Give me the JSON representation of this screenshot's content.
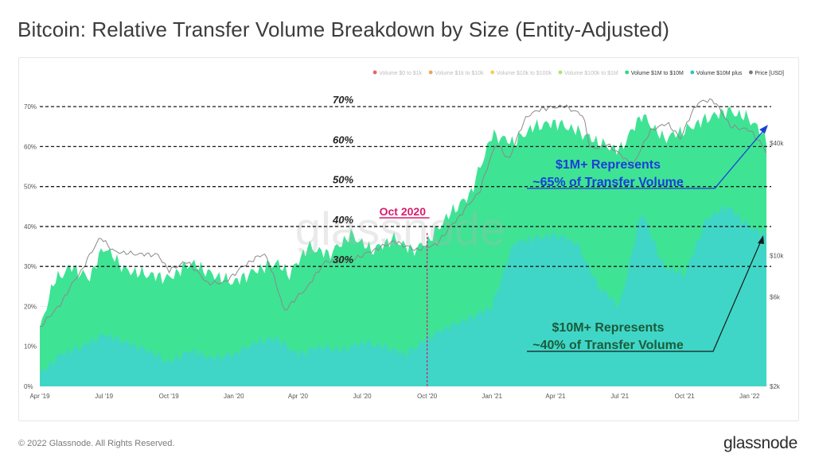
{
  "title": "Bitcoin: Relative Transfer Volume Breakdown by Size (Entity-Adjusted)",
  "footer": {
    "copyright": "© 2022 Glassnode. All Rights Reserved.",
    "brand": "glassnode"
  },
  "watermark": "glassnode",
  "chart_data": {
    "type": "area",
    "legend_position": "top-right",
    "legend": [
      {
        "name": "Volume $0 to $1k",
        "color": "#e5484d",
        "active": false
      },
      {
        "name": "Volume $1k to $10k",
        "color": "#f0913a",
        "active": false
      },
      {
        "name": "Volume $10k to $100k",
        "color": "#f2c531",
        "active": false
      },
      {
        "name": "Volume $100k to $1M",
        "color": "#9be05a",
        "active": false
      },
      {
        "name": "Volume $1M to $10M",
        "color": "#2fd681",
        "active": true
      },
      {
        "name": "Volume $10M plus",
        "color": "#2dc7c4",
        "active": true
      },
      {
        "name": "Price [USD]",
        "color": "#7a7a7a",
        "active": true
      }
    ],
    "y_left": {
      "min": 0,
      "max": 75,
      "ticks": [
        "0%",
        "10%",
        "20%",
        "30%",
        "40%",
        "50%",
        "60%",
        "70%"
      ],
      "tick_values": [
        0,
        10,
        20,
        30,
        40,
        50,
        60,
        70
      ]
    },
    "y_right": {
      "scale": "log",
      "min": 2000,
      "max": 80000,
      "ticks": [
        "$2k",
        "$6k",
        "$10k",
        "$40k"
      ],
      "tick_values": [
        2000,
        6000,
        10000,
        40000
      ]
    },
    "x_range": [
      "2019-04-01",
      "2022-01-25"
    ],
    "x_ticks": [
      {
        "label": "Apr '19",
        "date": "2019-04-01"
      },
      {
        "label": "Jul '19",
        "date": "2019-07-01"
      },
      {
        "label": "Oct '19",
        "date": "2019-10-01"
      },
      {
        "label": "Jan '20",
        "date": "2020-01-01"
      },
      {
        "label": "Apr '20",
        "date": "2020-04-01"
      },
      {
        "label": "Jul '20",
        "date": "2020-07-01"
      },
      {
        "label": "Oct '20",
        "date": "2020-10-01"
      },
      {
        "label": "Jan '21",
        "date": "2021-01-01"
      },
      {
        "label": "Apr '21",
        "date": "2021-04-01"
      },
      {
        "label": "Jul '21",
        "date": "2021-07-01"
      },
      {
        "label": "Oct '21",
        "date": "2021-10-01"
      },
      {
        "label": "Jan '22",
        "date": "2022-01-01"
      }
    ],
    "series": [
      {
        "name": "Volume $1M to $10M",
        "color": "#3fe394",
        "stacked_top_percent": [
          {
            "date": "2019-04-01",
            "value": 14
          },
          {
            "date": "2019-04-20",
            "value": 26
          },
          {
            "date": "2019-05-15",
            "value": 30
          },
          {
            "date": "2019-06-10",
            "value": 27
          },
          {
            "date": "2019-07-01",
            "value": 35
          },
          {
            "date": "2019-08-01",
            "value": 29
          },
          {
            "date": "2019-09-01",
            "value": 28
          },
          {
            "date": "2019-10-01",
            "value": 27
          },
          {
            "date": "2019-11-01",
            "value": 31
          },
          {
            "date": "2019-12-01",
            "value": 28
          },
          {
            "date": "2020-01-01",
            "value": 26
          },
          {
            "date": "2020-02-01",
            "value": 29
          },
          {
            "date": "2020-03-01",
            "value": 31
          },
          {
            "date": "2020-03-20",
            "value": 28
          },
          {
            "date": "2020-04-15",
            "value": 35
          },
          {
            "date": "2020-05-15",
            "value": 33
          },
          {
            "date": "2020-06-15",
            "value": 38
          },
          {
            "date": "2020-07-15",
            "value": 34
          },
          {
            "date": "2020-08-15",
            "value": 37
          },
          {
            "date": "2020-09-10",
            "value": 34
          },
          {
            "date": "2020-10-01",
            "value": 36
          },
          {
            "date": "2020-11-01",
            "value": 43
          },
          {
            "date": "2020-12-01",
            "value": 48
          },
          {
            "date": "2021-01-01",
            "value": 63
          },
          {
            "date": "2021-02-01",
            "value": 61
          },
          {
            "date": "2021-03-01",
            "value": 65
          },
          {
            "date": "2021-04-01",
            "value": 66
          },
          {
            "date": "2021-05-01",
            "value": 64
          },
          {
            "date": "2021-06-01",
            "value": 61
          },
          {
            "date": "2021-07-01",
            "value": 59
          },
          {
            "date": "2021-08-01",
            "value": 68
          },
          {
            "date": "2021-09-01",
            "value": 62
          },
          {
            "date": "2021-10-01",
            "value": 64
          },
          {
            "date": "2021-11-01",
            "value": 67
          },
          {
            "date": "2021-12-01",
            "value": 69
          },
          {
            "date": "2022-01-01",
            "value": 67
          },
          {
            "date": "2022-01-25",
            "value": 62
          }
        ]
      },
      {
        "name": "Volume $10M plus",
        "color": "#3fd6c7",
        "percent": [
          {
            "date": "2019-04-01",
            "value": 3
          },
          {
            "date": "2019-05-01",
            "value": 8
          },
          {
            "date": "2019-06-01",
            "value": 10
          },
          {
            "date": "2019-07-01",
            "value": 13
          },
          {
            "date": "2019-08-01",
            "value": 11
          },
          {
            "date": "2019-09-01",
            "value": 9
          },
          {
            "date": "2019-10-01",
            "value": 6
          },
          {
            "date": "2019-11-01",
            "value": 9
          },
          {
            "date": "2019-12-01",
            "value": 7
          },
          {
            "date": "2020-01-01",
            "value": 8
          },
          {
            "date": "2020-02-01",
            "value": 11
          },
          {
            "date": "2020-03-01",
            "value": 12
          },
          {
            "date": "2020-04-01",
            "value": 8
          },
          {
            "date": "2020-05-01",
            "value": 10
          },
          {
            "date": "2020-06-01",
            "value": 9
          },
          {
            "date": "2020-07-01",
            "value": 11
          },
          {
            "date": "2020-08-01",
            "value": 10
          },
          {
            "date": "2020-09-01",
            "value": 8
          },
          {
            "date": "2020-10-01",
            "value": 12
          },
          {
            "date": "2020-11-01",
            "value": 15
          },
          {
            "date": "2020-12-01",
            "value": 17
          },
          {
            "date": "2021-01-01",
            "value": 20
          },
          {
            "date": "2021-02-01",
            "value": 36
          },
          {
            "date": "2021-03-01",
            "value": 37
          },
          {
            "date": "2021-04-01",
            "value": 38
          },
          {
            "date": "2021-05-01",
            "value": 36
          },
          {
            "date": "2021-06-01",
            "value": 25
          },
          {
            "date": "2021-07-01",
            "value": 20
          },
          {
            "date": "2021-08-01",
            "value": 44
          },
          {
            "date": "2021-09-01",
            "value": 30
          },
          {
            "date": "2021-10-01",
            "value": 28
          },
          {
            "date": "2021-11-01",
            "value": 42
          },
          {
            "date": "2021-12-01",
            "value": 45
          },
          {
            "date": "2022-01-01",
            "value": 40
          },
          {
            "date": "2022-01-25",
            "value": 38
          }
        ]
      },
      {
        "name": "Price [USD]",
        "color": "#8a8a8a",
        "axis": "right",
        "values": [
          {
            "date": "2019-04-01",
            "value": 4100
          },
          {
            "date": "2019-05-01",
            "value": 5500
          },
          {
            "date": "2019-06-01",
            "value": 8500
          },
          {
            "date": "2019-06-26",
            "value": 12500
          },
          {
            "date": "2019-07-15",
            "value": 10500
          },
          {
            "date": "2019-08-15",
            "value": 10200
          },
          {
            "date": "2019-09-15",
            "value": 10100
          },
          {
            "date": "2019-10-01",
            "value": 8300
          },
          {
            "date": "2019-10-26",
            "value": 9300
          },
          {
            "date": "2019-11-25",
            "value": 7100
          },
          {
            "date": "2019-12-20",
            "value": 7200
          },
          {
            "date": "2020-01-15",
            "value": 8800
          },
          {
            "date": "2020-02-13",
            "value": 10300
          },
          {
            "date": "2020-03-12",
            "value": 5000
          },
          {
            "date": "2020-04-15",
            "value": 6800
          },
          {
            "date": "2020-05-10",
            "value": 9300
          },
          {
            "date": "2020-06-15",
            "value": 9400
          },
          {
            "date": "2020-07-25",
            "value": 11000
          },
          {
            "date": "2020-08-15",
            "value": 11900
          },
          {
            "date": "2020-09-15",
            "value": 10700
          },
          {
            "date": "2020-10-15",
            "value": 11500
          },
          {
            "date": "2020-11-15",
            "value": 16000
          },
          {
            "date": "2020-12-15",
            "value": 22000
          },
          {
            "date": "2021-01-08",
            "value": 40000
          },
          {
            "date": "2021-01-25",
            "value": 32000
          },
          {
            "date": "2021-02-20",
            "value": 56000
          },
          {
            "date": "2021-03-13",
            "value": 61000
          },
          {
            "date": "2021-04-14",
            "value": 63000
          },
          {
            "date": "2021-05-10",
            "value": 56000
          },
          {
            "date": "2021-05-20",
            "value": 37000
          },
          {
            "date": "2021-06-15",
            "value": 39000
          },
          {
            "date": "2021-07-20",
            "value": 30000
          },
          {
            "date": "2021-08-15",
            "value": 47000
          },
          {
            "date": "2021-09-07",
            "value": 51000
          },
          {
            "date": "2021-09-25",
            "value": 42000
          },
          {
            "date": "2021-10-20",
            "value": 66000
          },
          {
            "date": "2021-11-10",
            "value": 68000
          },
          {
            "date": "2021-12-05",
            "value": 49000
          },
          {
            "date": "2022-01-01",
            "value": 47000
          },
          {
            "date": "2022-01-25",
            "value": 36000
          }
        ]
      }
    ],
    "reference_lines": [
      {
        "value": 70,
        "label": "70%"
      },
      {
        "value": 60,
        "label": "60%"
      },
      {
        "value": 50,
        "label": "50%"
      },
      {
        "value": 40,
        "label": "40%"
      },
      {
        "value": 30,
        "label": "30%"
      }
    ],
    "marker": {
      "date": "2020-10-01",
      "label": "Oct 2020",
      "color": "#d81b6e"
    },
    "annotations": [
      {
        "lines": [
          "$1M+ Represents",
          "~65% of Transfer Volume"
        ],
        "color": "#1a3fd6"
      },
      {
        "lines": [
          "$10M+ Represents",
          "~40% of Transfer Volume"
        ],
        "color": "#1e5a3c"
      }
    ]
  }
}
